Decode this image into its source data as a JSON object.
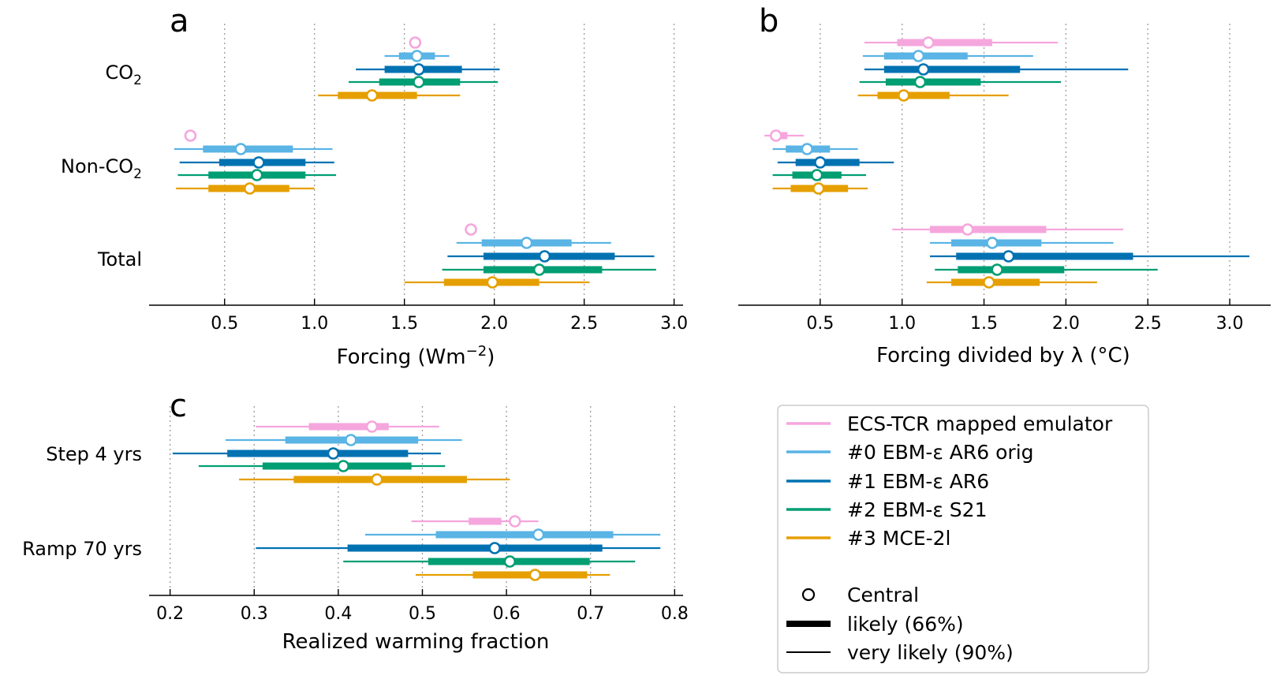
{
  "colors": {
    "ecs_tcr": "#f5a6dd",
    "ebm0": "#5ab4e5",
    "ebm1": "#0072b2",
    "ebm2": "#009e73",
    "mce": "#e69f00",
    "grid": "#9a9a9a"
  },
  "legend": {
    "items": [
      {
        "label": "ECS-TCR mapped emulator",
        "color": "#f5a6dd"
      },
      {
        "label": "#0 EBM-ε AR6 orig",
        "color": "#5ab4e5"
      },
      {
        "label": "#1 EBM-ε AR6",
        "color": "#0072b2"
      },
      {
        "label": "#2 EBM-ε S21",
        "color": "#009e73"
      },
      {
        "label": "#3 MCE-2l",
        "color": "#e69f00"
      }
    ],
    "central_label": "Central",
    "likely_label": "likely (66%)",
    "very_likely_label": "very likely (90%)"
  },
  "chart_data": [
    {
      "panel": "a",
      "type": "interval",
      "xlabel": "Forcing (Wm⁻²)",
      "xlim": [
        0.08,
        3.05
      ],
      "xticks": [
        0.5,
        1.0,
        1.5,
        2.0,
        2.5,
        3.0
      ],
      "xtick_labels": [
        "0.5",
        "1.0",
        "1.5",
        "2.0",
        "2.5",
        "3.0"
      ],
      "grid": "vertical dotted",
      "categories": [
        {
          "label": "CO₂",
          "series": [
            {
              "central": 1.56
            },
            {
              "central": 1.57,
              "likely": [
                1.47,
                1.67
              ],
              "very_likely": [
                1.39,
                1.75
              ]
            },
            {
              "central": 1.58,
              "likely": [
                1.39,
                1.82
              ],
              "very_likely": [
                1.23,
                2.03
              ]
            },
            {
              "central": 1.58,
              "likely": [
                1.36,
                1.81
              ],
              "very_likely": [
                1.19,
                2.02
              ]
            },
            {
              "central": 1.32,
              "likely": [
                1.13,
                1.57
              ],
              "very_likely": [
                1.02,
                1.81
              ]
            }
          ]
        },
        {
          "label": "Non-CO₂",
          "series": [
            {
              "central": 0.31
            },
            {
              "central": 0.59,
              "likely": [
                0.38,
                0.88
              ],
              "very_likely": [
                0.22,
                1.1
              ]
            },
            {
              "central": 0.69,
              "likely": [
                0.47,
                0.95
              ],
              "very_likely": [
                0.25,
                1.11
              ]
            },
            {
              "central": 0.68,
              "likely": [
                0.41,
                0.95
              ],
              "very_likely": [
                0.24,
                1.12
              ]
            },
            {
              "central": 0.64,
              "likely": [
                0.41,
                0.86
              ],
              "very_likely": [
                0.23,
                1.0
              ]
            }
          ]
        },
        {
          "label": "Total",
          "series": [
            {
              "central": 1.87
            },
            {
              "central": 2.18,
              "likely": [
                1.93,
                2.43
              ],
              "very_likely": [
                1.79,
                2.65
              ]
            },
            {
              "central": 2.28,
              "likely": [
                1.94,
                2.67
              ],
              "very_likely": [
                1.74,
                2.89
              ]
            },
            {
              "central": 2.25,
              "likely": [
                1.94,
                2.6
              ],
              "very_likely": [
                1.71,
                2.9
              ]
            },
            {
              "central": 1.99,
              "likely": [
                1.72,
                2.25
              ],
              "very_likely": [
                1.5,
                2.53
              ]
            }
          ]
        }
      ]
    },
    {
      "panel": "b",
      "type": "interval",
      "xlabel": "Forcing divided by λ (°C)",
      "xlim": [
        0.0,
        3.25
      ],
      "xticks": [
        0.5,
        1.0,
        1.5,
        2.0,
        2.5,
        3.0
      ],
      "xtick_labels": [
        "0.5",
        "1.0",
        "1.5",
        "2.0",
        "2.5",
        "3.0"
      ],
      "grid": "vertical dotted",
      "categories": [
        {
          "label": "CO₂",
          "series": [
            {
              "central": 1.16,
              "likely": [
                0.97,
                1.55
              ],
              "very_likely": [
                0.77,
                1.95
              ]
            },
            {
              "central": 1.1,
              "likely": [
                0.89,
                1.4
              ],
              "very_likely": [
                0.76,
                1.8
              ]
            },
            {
              "central": 1.13,
              "likely": [
                0.89,
                1.72
              ],
              "very_likely": [
                0.77,
                2.38
              ]
            },
            {
              "central": 1.11,
              "likely": [
                0.9,
                1.48
              ],
              "very_likely": [
                0.74,
                1.97
              ]
            },
            {
              "central": 1.01,
              "likely": [
                0.85,
                1.29
              ],
              "very_likely": [
                0.73,
                1.65
              ]
            }
          ]
        },
        {
          "label": "Non-CO₂",
          "series": [
            {
              "central": 0.23,
              "likely": [
                0.22,
                0.3
              ],
              "very_likely": [
                0.16,
                0.4
              ]
            },
            {
              "central": 0.42,
              "likely": [
                0.29,
                0.56
              ],
              "very_likely": [
                0.21,
                0.73
              ]
            },
            {
              "central": 0.5,
              "likely": [
                0.35,
                0.74
              ],
              "very_likely": [
                0.24,
                0.95
              ]
            },
            {
              "central": 0.48,
              "likely": [
                0.33,
                0.63
              ],
              "very_likely": [
                0.21,
                0.78
              ]
            },
            {
              "central": 0.49,
              "likely": [
                0.32,
                0.67
              ],
              "very_likely": [
                0.21,
                0.79
              ]
            }
          ]
        },
        {
          "label": "Total",
          "series": [
            {
              "central": 1.4,
              "likely": [
                1.17,
                1.88
              ],
              "very_likely": [
                0.94,
                2.35
              ]
            },
            {
              "central": 1.55,
              "likely": [
                1.3,
                1.85
              ],
              "very_likely": [
                1.17,
                2.29
              ]
            },
            {
              "central": 1.65,
              "likely": [
                1.33,
                2.41
              ],
              "very_likely": [
                1.17,
                3.12
              ]
            },
            {
              "central": 1.58,
              "likely": [
                1.34,
                1.99
              ],
              "very_likely": [
                1.2,
                2.56
              ]
            },
            {
              "central": 1.53,
              "likely": [
                1.3,
                1.84
              ],
              "very_likely": [
                1.15,
                2.19
              ]
            }
          ]
        }
      ]
    },
    {
      "panel": "c",
      "type": "interval",
      "xlabel": "Realized warming fraction",
      "xlim": [
        0.175,
        0.81
      ],
      "xticks": [
        0.2,
        0.3,
        0.4,
        0.5,
        0.6,
        0.7,
        0.8
      ],
      "xtick_labels": [
        "0.2",
        "0.3",
        "0.4",
        "0.5",
        "0.6",
        "0.7",
        "0.8"
      ],
      "grid": "vertical dotted",
      "categories": [
        {
          "label": "Step 4 yrs",
          "series": [
            {
              "central": 0.44,
              "likely": [
                0.365,
                0.46
              ],
              "very_likely": [
                0.302,
                0.52
              ]
            },
            {
              "central": 0.415,
              "likely": [
                0.337,
                0.495
              ],
              "very_likely": [
                0.266,
                0.547
              ]
            },
            {
              "central": 0.394,
              "likely": [
                0.268,
                0.483
              ],
              "very_likely": [
                0.203,
                0.522
              ]
            },
            {
              "central": 0.406,
              "likely": [
                0.31,
                0.487
              ],
              "very_likely": [
                0.234,
                0.527
              ]
            },
            {
              "central": 0.446,
              "likely": [
                0.347,
                0.553
              ],
              "very_likely": [
                0.282,
                0.604
              ]
            }
          ]
        },
        {
          "label": "Ramp 70 yrs",
          "series": [
            {
              "central": 0.61,
              "likely": [
                0.555,
                0.594
              ],
              "very_likely": [
                0.487,
                0.638
              ]
            },
            {
              "central": 0.638,
              "likely": [
                0.516,
                0.727
              ],
              "very_likely": [
                0.432,
                0.783
              ]
            },
            {
              "central": 0.586,
              "likely": [
                0.411,
                0.714
              ],
              "very_likely": [
                0.302,
                0.783
              ]
            },
            {
              "central": 0.604,
              "likely": [
                0.507,
                0.699
              ],
              "very_likely": [
                0.406,
                0.753
              ]
            },
            {
              "central": 0.634,
              "likely": [
                0.56,
                0.696
              ],
              "very_likely": [
                0.492,
                0.723
              ]
            }
          ]
        }
      ]
    }
  ]
}
